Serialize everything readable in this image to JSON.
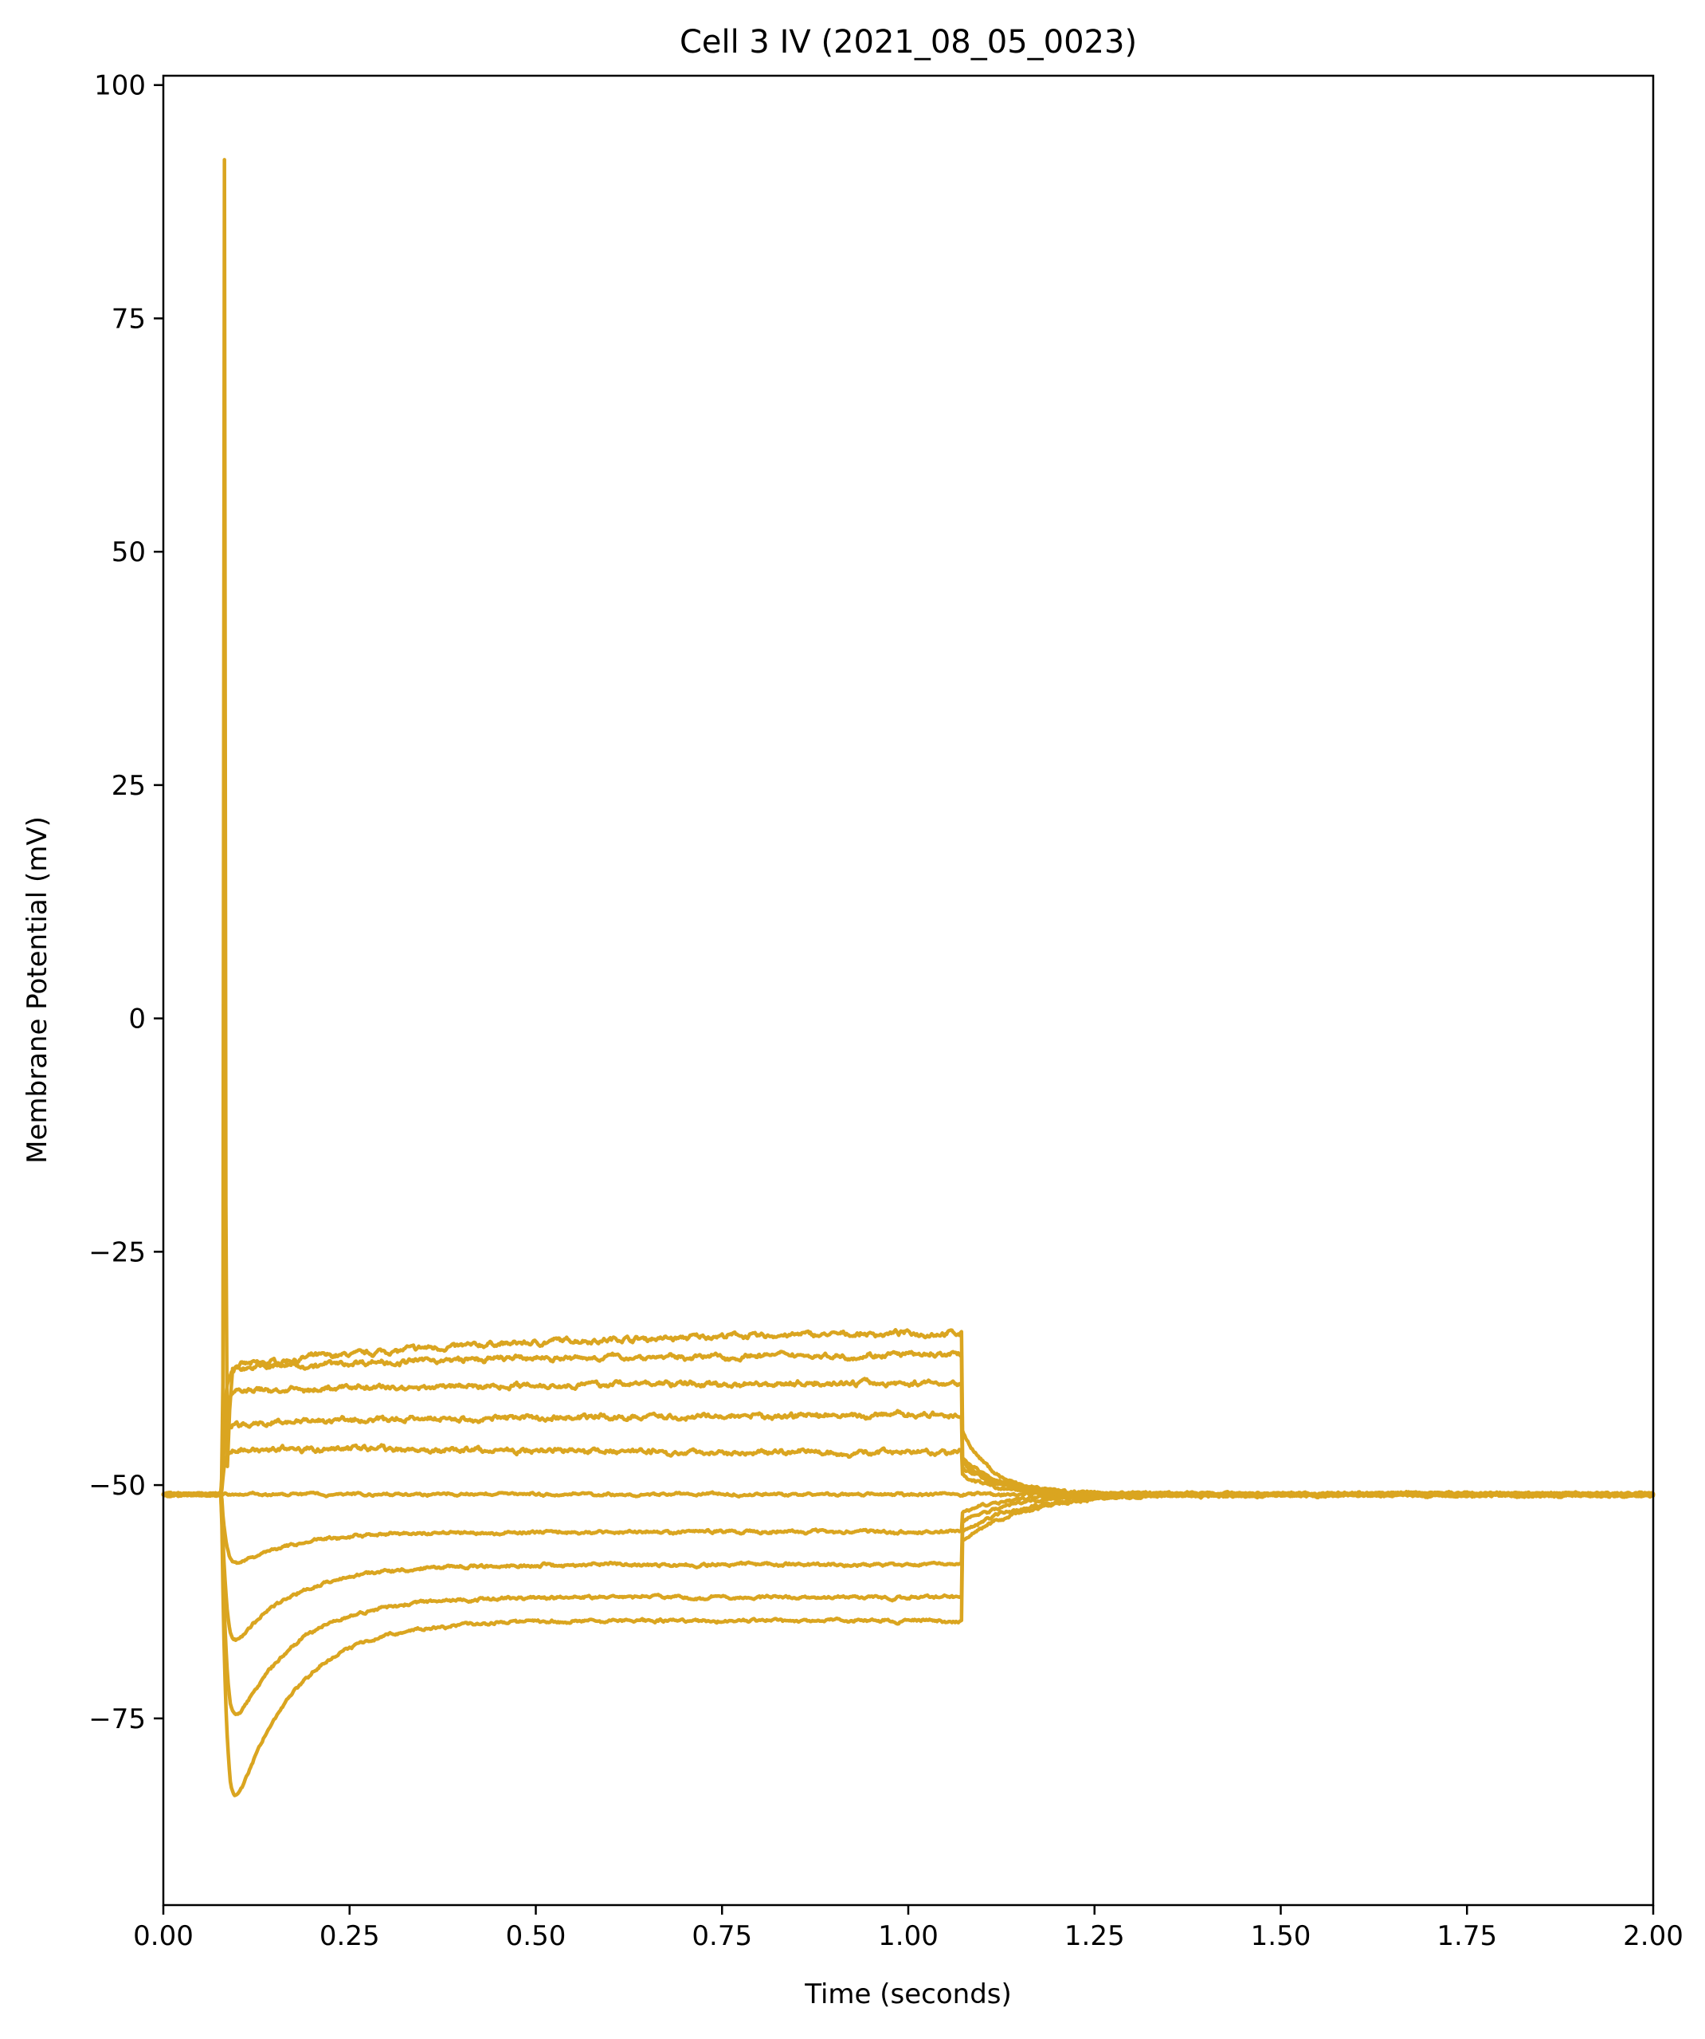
{
  "chart_data": {
    "type": "line",
    "title": "Cell 3 IV (2021_08_05_0023)",
    "xlabel": "Time (seconds)",
    "ylabel": "Membrane Potential (mV)",
    "xlim": [
      0,
      2.0
    ],
    "ylim": [
      -95,
      101
    ],
    "xticks": [
      0,
      0.25,
      0.5,
      0.75,
      1.0,
      1.25,
      1.5,
      1.75,
      2.0
    ],
    "xtick_labels": [
      "0.00",
      "0.25",
      "0.50",
      "0.75",
      "1.00",
      "1.25",
      "1.50",
      "1.75",
      "2.00"
    ],
    "yticks": [
      -75,
      -50,
      -25,
      0,
      25,
      50,
      75,
      100
    ],
    "ytick_labels": [
      "−75",
      "−50",
      "−25",
      "0",
      "25",
      "50",
      "75",
      "100"
    ],
    "grid": false,
    "color": "#DAA520",
    "step_on": 0.078,
    "step_off": 1.072,
    "baseline": -51,
    "series": [
      {
        "steady": -33.5,
        "start": -37.5,
        "peak": 92,
        "post": -44,
        "tau_off": 0.04
      },
      {
        "steady": -36,
        "start": -37.5,
        "post": -47,
        "tau_off": 0.05
      },
      {
        "steady": -39,
        "start": -40,
        "post": -47.5,
        "tau_off": 0.05
      },
      {
        "steady": -42.5,
        "start": -43.5,
        "post": -48,
        "tau_off": 0.05
      },
      {
        "steady": -46.5,
        "start": -46,
        "post": -49,
        "tau_off": 0.05
      },
      {
        "steady": -51,
        "start": -51,
        "post": -51,
        "tau_off": 0.05
      },
      {
        "steady": -55,
        "sag": -59,
        "post": -53,
        "tau_off": 0.06
      },
      {
        "steady": -58.5,
        "sag": -68,
        "post": -54,
        "tau_off": 0.07
      },
      {
        "steady": -62,
        "sag": -77,
        "post": -55,
        "tau_off": 0.08
      },
      {
        "steady": -64.5,
        "sag": -86.5,
        "post": -56,
        "tau_off": 0.08
      }
    ]
  }
}
